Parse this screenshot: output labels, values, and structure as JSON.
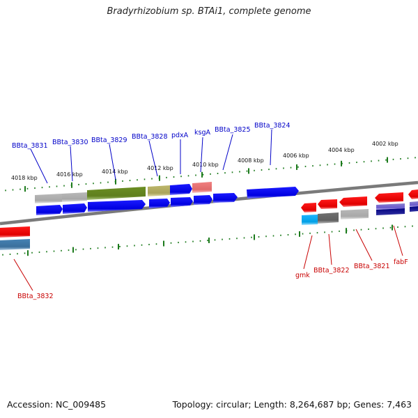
{
  "title": "Bradyrhizobium sp. BTAi1, complete genome",
  "accession": "Accession: NC_009485",
  "topology": "Topology: circular; Length: 8,264,687 bp; Genes: 7,463",
  "colors": {
    "forward_label": "#0000c8",
    "reverse_label": "#c80000",
    "tick": "#1b7a1b",
    "backbone": "#7a7a7a"
  },
  "scale_ticks": [
    {
      "label": "4018 kbp"
    },
    {
      "label": "4016 kbp"
    },
    {
      "label": "4014 kbp"
    },
    {
      "label": "4012 kbp"
    },
    {
      "label": "4010 kbp"
    },
    {
      "label": "4008 kbp"
    },
    {
      "label": "4006 kbp"
    },
    {
      "label": "4004 kbp"
    },
    {
      "label": "4002 kbp"
    }
  ],
  "forward_genes": [
    {
      "label": "BBta_3831",
      "strand": "forward"
    },
    {
      "label": "BBta_3830",
      "strand": "forward"
    },
    {
      "label": "BBta_3829",
      "strand": "forward"
    },
    {
      "label": "BBta_3828",
      "strand": "forward"
    },
    {
      "label": "pdxA",
      "strand": "forward"
    },
    {
      "label": "ksgA",
      "strand": "forward"
    },
    {
      "label": "BBta_3825",
      "strand": "forward"
    },
    {
      "label": "BBta_3824",
      "strand": "forward"
    }
  ],
  "reverse_genes": [
    {
      "label": "BBta_3832",
      "strand": "reverse"
    },
    {
      "label": "gmk",
      "strand": "reverse"
    },
    {
      "label": "BBta_3822",
      "strand": "reverse"
    },
    {
      "label": "BBta_3821",
      "strand": "reverse"
    },
    {
      "label": "fabF",
      "strand": "reverse"
    }
  ]
}
